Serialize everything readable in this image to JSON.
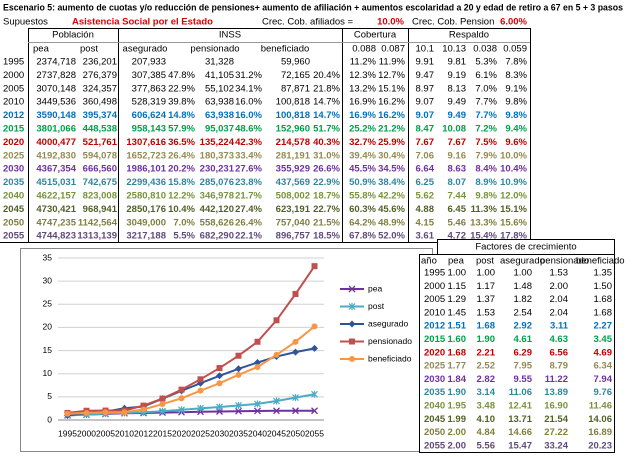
{
  "header": {
    "title": "Escenario 5:  aumento de cuotas y/o reducción de pensiones+ aumento de afiliación + aumentos escolaridad a 20 y edad de retiro a 67 en 5 + 3 pasos",
    "supuestos": "Supuestos",
    "scenario": "Asistencia Social por el Estado",
    "afiliados_label": "Crec. Cob. afiliados =",
    "afiliados_value": "10.0%",
    "pension_label": "Crec. Cob. Pension",
    "pension_value": "6.00%"
  },
  "table": {
    "groups": [
      "Población",
      "INSS",
      "Cobertura",
      "Respaldo"
    ],
    "columns": [
      "pea",
      "post",
      "asegurado",
      "pensionado",
      "beneficiado",
      "0.088",
      "0.087",
      "10.1",
      "10.13",
      "0.038",
      "0.059"
    ],
    "rows": [
      {
        "color": "#000000",
        "cells": [
          "1995",
          "2374,718",
          "236,201",
          "207,933",
          null,
          "31,328",
          null,
          "59,960",
          null,
          "11.2%",
          "11.9%",
          "9.91",
          "9.81",
          "5.3%",
          "7.8%"
        ]
      },
      {
        "color": "#000000",
        "cells": [
          "2000",
          "2737,828",
          "276,379",
          "307,385",
          "47.8%",
          "41,105",
          "31.2%",
          "72,165",
          "20.4%",
          "12.3%",
          "12.7%",
          "9.47",
          "9.19",
          "6.1%",
          "8.3%"
        ]
      },
      {
        "color": "#000000",
        "cells": [
          "2005",
          "3070,148",
          "324,357",
          "377,863",
          "22.9%",
          "55,102",
          "34.1%",
          "87,871",
          "21.8%",
          "13.2%",
          "15.1%",
          "8.97",
          "8.13",
          "7.0%",
          "9.1%"
        ]
      },
      {
        "color": "#000000",
        "cells": [
          "2010",
          "3449,536",
          "360,498",
          "528,319",
          "39.8%",
          "63,938",
          "16.0%",
          "100,818",
          "14.7%",
          "16.9%",
          "16.2%",
          "9.07",
          "9.49",
          "7.7%",
          "9.8%"
        ]
      },
      {
        "color": "#0070c0",
        "cells": [
          "2012",
          "3590,148",
          "395,374",
          "606,624",
          "14.8%",
          "63,938",
          "16.0%",
          "100,818",
          "14.7%",
          "16.9%",
          "16.2%",
          "9.07",
          "9.49",
          "7.7%",
          "9.8%"
        ]
      },
      {
        "color": "#00a04a",
        "cells": [
          "2015",
          "3801,066",
          "448,538",
          "958,143",
          "57.9%",
          "95,037",
          "48.6%",
          "152,960",
          "51.7%",
          "25.2%",
          "21.2%",
          "8.47",
          "10.08",
          "7.2%",
          "9.4%"
        ]
      },
      {
        "color": "#c00000",
        "cells": [
          "2020",
          "4000,477",
          "521,761",
          "1307,616",
          "36.5%",
          "135,224",
          "42.3%",
          "214,578",
          "40.3%",
          "32.7%",
          "25.9%",
          "7.67",
          "7.67",
          "7.5%",
          "9.6%"
        ]
      },
      {
        "color": "#948a54",
        "cells": [
          "2025",
          "4192,830",
          "594,078",
          "1652,723",
          "26.4%",
          "180,373",
          "33.4%",
          "281,191",
          "31.0%",
          "39.4%",
          "30.4%",
          "7.06",
          "9.16",
          "7.9%",
          "10.0%"
        ]
      },
      {
        "color": "#7030a0",
        "cells": [
          "2030",
          "4367,354",
          "666,560",
          "1986,101",
          "20.2%",
          "230,231",
          "27.6%",
          "355,929",
          "26.6%",
          "45.5%",
          "34.5%",
          "6.64",
          "8.63",
          "8.4%",
          "10.4%"
        ]
      },
      {
        "color": "#31859c",
        "cells": [
          "2035",
          "4515,031",
          "742,675",
          "2299,436",
          "15.8%",
          "285,076",
          "23.8%",
          "437,569",
          "22.9%",
          "50.9%",
          "38.4%",
          "6.25",
          "8.07",
          "8.9%",
          "10.9%"
        ]
      },
      {
        "color": "#77933c",
        "cells": [
          "2040",
          "4622,157",
          "823,008",
          "2580,810",
          "12.2%",
          "346,978",
          "21.7%",
          "508,002",
          "18.7%",
          "55.8%",
          "42.2%",
          "5.62",
          "7.44",
          "9.8%",
          "12.0%"
        ]
      },
      {
        "color": "#4f6228",
        "cells": [
          "2045",
          "4730,421",
          "968,941",
          "2850,176",
          "10.4%",
          "442,120",
          "27.4%",
          "623,191",
          "22.7%",
          "60.3%",
          "45.6%",
          "4.88",
          "6.45",
          "11.3%",
          "15.1%"
        ]
      },
      {
        "color": "#7f7f3f",
        "cells": [
          "2050",
          "4747,235",
          "1142,564",
          "3049,000",
          "7.0%",
          "558,626",
          "26.4%",
          "757,040",
          "21.5%",
          "64.2%",
          "48.9%",
          "4.15",
          "5.46",
          "13.3%",
          "15.6%"
        ]
      },
      {
        "color": "#604a7b",
        "cells": [
          "2055",
          "4744,823",
          "1313,139",
          "3217,188",
          "5.5%",
          "682,290",
          "22.1%",
          "896,757",
          "18.5%",
          "67.8%",
          "52.0%",
          "3.61",
          "4.72",
          "15.4%",
          "17.8%"
        ]
      }
    ]
  },
  "factors": {
    "title": "Factores de crecimiento",
    "columns": [
      "año",
      "pea",
      "post",
      "asegurado",
      "pensionado",
      "beneficiado"
    ],
    "rows": [
      {
        "color": "#000000",
        "cells": [
          "1995",
          "1.00",
          "1.00",
          "1.00",
          "1.53",
          "1.35"
        ]
      },
      {
        "color": "#000000",
        "cells": [
          "2000",
          "1.15",
          "1.17",
          "1.48",
          "2.00",
          "1.50"
        ]
      },
      {
        "color": "#000000",
        "cells": [
          "2005",
          "1.29",
          "1.37",
          "1.82",
          "2.04",
          "1.68"
        ]
      },
      {
        "color": "#000000",
        "cells": [
          "2010",
          "1.45",
          "1.53",
          "2.54",
          "2.04",
          "1.68"
        ]
      },
      {
        "color": "#0070c0",
        "cells": [
          "2012",
          "1.51",
          "1.68",
          "2.92",
          "3.11",
          "2.27"
        ]
      },
      {
        "color": "#00a04a",
        "cells": [
          "2015",
          "1.60",
          "1.90",
          "4.61",
          "4.63",
          "3.45"
        ]
      },
      {
        "color": "#c00000",
        "cells": [
          "2020",
          "1.68",
          "2.21",
          "6.29",
          "6.56",
          "4.69"
        ]
      },
      {
        "color": "#948a54",
        "cells": [
          "2025",
          "1.77",
          "2.52",
          "7.95",
          "8.79",
          "6.34"
        ]
      },
      {
        "color": "#7030a0",
        "cells": [
          "2030",
          "1.84",
          "2.82",
          "9.55",
          "11.22",
          "7.94"
        ]
      },
      {
        "color": "#31859c",
        "cells": [
          "2035",
          "1.90",
          "3.14",
          "11.06",
          "13.89",
          "9.76"
        ]
      },
      {
        "color": "#77933c",
        "cells": [
          "2040",
          "1.95",
          "3.48",
          "12.41",
          "16.90",
          "11.46"
        ]
      },
      {
        "color": "#4f6228",
        "cells": [
          "2045",
          "1.99",
          "4.10",
          "13.71",
          "21.54",
          "14.06"
        ]
      },
      {
        "color": "#7f7f3f",
        "cells": [
          "2050",
          "2.00",
          "4.84",
          "14.66",
          "27.22",
          "16.89"
        ]
      },
      {
        "color": "#604a7b",
        "cells": [
          "2055",
          "2.00",
          "5.56",
          "15.47",
          "33.24",
          "20.23"
        ]
      }
    ]
  },
  "chart_data": {
    "type": "line",
    "categories": [
      "1995",
      "2000",
      "2005",
      "2010",
      "2012",
      "2015",
      "2020",
      "2025",
      "2030",
      "2035",
      "2040",
      "2045",
      "2050",
      "2055"
    ],
    "ylim": [
      0,
      35
    ],
    "yticks": [
      0,
      5,
      10,
      15,
      20,
      25,
      30,
      35
    ],
    "grid": true,
    "series": [
      {
        "name": "pea",
        "color": "#7030a0",
        "marker": "x",
        "values": [
          1.0,
          1.15,
          1.29,
          1.45,
          1.51,
          1.6,
          1.68,
          1.77,
          1.84,
          1.9,
          1.95,
          1.99,
          2.0,
          2.0
        ]
      },
      {
        "name": "post",
        "color": "#4bacc6",
        "marker": "star",
        "values": [
          1.0,
          1.17,
          1.37,
          1.53,
          1.68,
          1.9,
          2.21,
          2.52,
          2.82,
          3.14,
          3.48,
          4.1,
          4.84,
          5.56
        ]
      },
      {
        "name": "asegurado",
        "color": "#2f5597",
        "marker": "diamond",
        "values": [
          1.0,
          1.48,
          1.82,
          2.54,
          2.92,
          4.61,
          6.29,
          7.95,
          9.55,
          11.06,
          12.41,
          13.71,
          14.66,
          15.47
        ]
      },
      {
        "name": "pensionado",
        "color": "#c0504d",
        "marker": "square",
        "values": [
          1.53,
          2.0,
          2.04,
          2.04,
          3.11,
          4.63,
          6.56,
          8.79,
          11.22,
          13.89,
          16.9,
          21.54,
          27.22,
          33.24
        ]
      },
      {
        "name": "beneficiado",
        "color": "#f79646",
        "marker": "circle",
        "values": [
          1.35,
          1.5,
          1.68,
          1.68,
          2.27,
          3.45,
          4.69,
          6.34,
          7.94,
          9.76,
          11.46,
          14.06,
          16.89,
          20.23
        ]
      }
    ]
  }
}
